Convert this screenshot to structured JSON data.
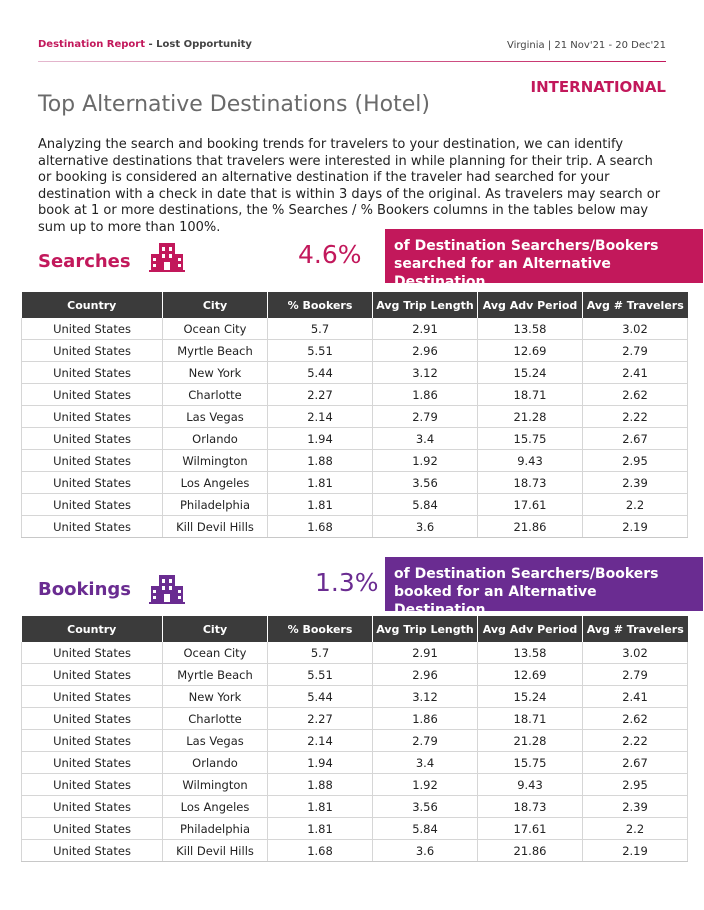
{
  "header": {
    "report_name": "Destination Report",
    "report_sub": " - Lost Opportunity",
    "meta": "Virginia | 21 Nov'21 - 20 Dec'21",
    "region": "INTERNATIONAL"
  },
  "page_title": "Top Alternative Destinations (Hotel)",
  "intro": "Analyzing the search and booking trends for travelers to your destination, we can identify alternative destinations that travelers were interested in while planning for their trip. A search or booking is considered an alternative destination if the traveler had searched for your destination with a check in date that is within 3 days of the original.  As travelers may search or book at 1 or more destinations, the % Searches / % Bookers  columns in the tables below may sum up to more than 100%.",
  "colors": {
    "searches_accent": "#c2185b",
    "bookings_accent": "#6a2c91",
    "table_header": "#3b3b3b"
  },
  "searches": {
    "label": "Searches",
    "icon": "hotel-building-icon",
    "percent": "4.6%",
    "callout": "of Destination Searchers/Bookers searched for an Alternative Destination.",
    "columns": [
      "Country",
      "City",
      "% Bookers",
      "Avg Trip Length",
      "Avg Adv Period",
      "Avg # Travelers"
    ],
    "rows": [
      [
        "United States",
        "Ocean City",
        "5.7",
        "2.91",
        "13.58",
        "3.02"
      ],
      [
        "United States",
        "Myrtle Beach",
        "5.51",
        "2.96",
        "12.69",
        "2.79"
      ],
      [
        "United States",
        "New York",
        "5.44",
        "3.12",
        "15.24",
        "2.41"
      ],
      [
        "United States",
        "Charlotte",
        "2.27",
        "1.86",
        "18.71",
        "2.62"
      ],
      [
        "United States",
        "Las Vegas",
        "2.14",
        "2.79",
        "21.28",
        "2.22"
      ],
      [
        "United States",
        "Orlando",
        "1.94",
        "3.4",
        "15.75",
        "2.67"
      ],
      [
        "United States",
        "Wilmington",
        "1.88",
        "1.92",
        "9.43",
        "2.95"
      ],
      [
        "United States",
        "Los Angeles",
        "1.81",
        "3.56",
        "18.73",
        "2.39"
      ],
      [
        "United States",
        "Philadelphia",
        "1.81",
        "5.84",
        "17.61",
        "2.2"
      ],
      [
        "United States",
        "Kill Devil Hills",
        "1.68",
        "3.6",
        "21.86",
        "2.19"
      ]
    ]
  },
  "bookings": {
    "label": "Bookings",
    "icon": "hotel-building-icon",
    "percent": "1.3%",
    "callout": "of Destination Searchers/Bookers booked for an Alternative Destination.",
    "columns": [
      "Country",
      "City",
      "% Bookers",
      "Avg Trip Length",
      "Avg Adv Period",
      "Avg # Travelers"
    ],
    "rows": [
      [
        "United States",
        "Ocean City",
        "5.7",
        "2.91",
        "13.58",
        "3.02"
      ],
      [
        "United States",
        "Myrtle Beach",
        "5.51",
        "2.96",
        "12.69",
        "2.79"
      ],
      [
        "United States",
        "New York",
        "5.44",
        "3.12",
        "15.24",
        "2.41"
      ],
      [
        "United States",
        "Charlotte",
        "2.27",
        "1.86",
        "18.71",
        "2.62"
      ],
      [
        "United States",
        "Las Vegas",
        "2.14",
        "2.79",
        "21.28",
        "2.22"
      ],
      [
        "United States",
        "Orlando",
        "1.94",
        "3.4",
        "15.75",
        "2.67"
      ],
      [
        "United States",
        "Wilmington",
        "1.88",
        "1.92",
        "9.43",
        "2.95"
      ],
      [
        "United States",
        "Los Angeles",
        "1.81",
        "3.56",
        "18.73",
        "2.39"
      ],
      [
        "United States",
        "Philadelphia",
        "1.81",
        "5.84",
        "17.61",
        "2.2"
      ],
      [
        "United States",
        "Kill Devil Hills",
        "1.68",
        "3.6",
        "21.86",
        "2.19"
      ]
    ]
  }
}
